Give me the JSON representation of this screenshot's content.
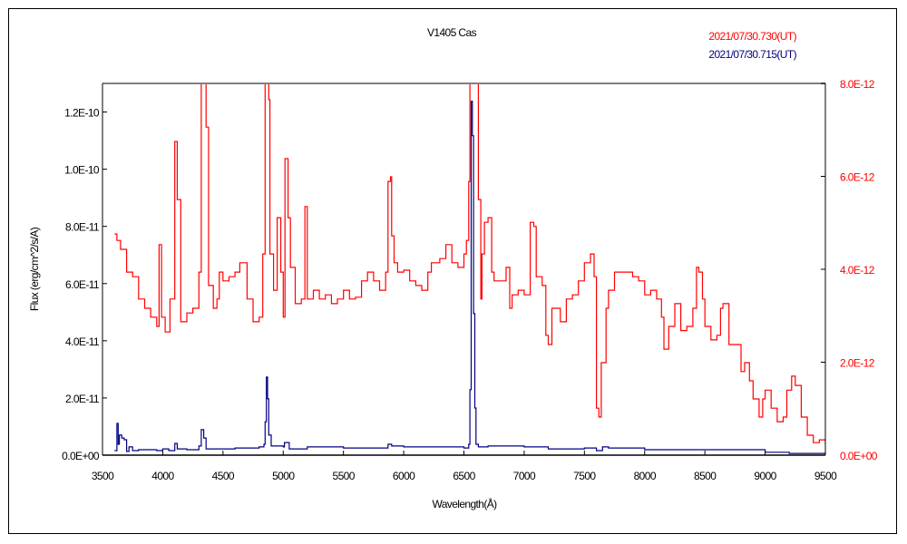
{
  "chart_data": {
    "type": "line",
    "title": "V1405 Cas",
    "xlabel": "Wavelength(Å)",
    "ylabel": "Flux (erg/cm^2/s/A)",
    "xlim": [
      3500,
      9500
    ],
    "ylim_left": [
      0,
      1.3e-10
    ],
    "ylim_right": [
      0,
      8e-12
    ],
    "x_ticks": [
      "3500",
      "4000",
      "4500",
      "5000",
      "5500",
      "6000",
      "6500",
      "7000",
      "7500",
      "8000",
      "8500",
      "9000",
      "9500"
    ],
    "left_ticks": [
      "0.0E+00",
      "2.0E-11",
      "4.0E-11",
      "6.0E-11",
      "8.0E-11",
      "1.0E-10",
      "1.2E-10"
    ],
    "right_ticks": [
      "0.0E+00",
      "2.0E-12",
      "4.0E-12",
      "6.0E-12",
      "8.0E-12"
    ],
    "grid": false,
    "legend_placement": "top-right",
    "series": [
      {
        "name": "2021/07/30.730(UT)",
        "color": "#ff0000",
        "axis": "right",
        "x": [
          3600,
          3620,
          3650,
          3700,
          3750,
          3800,
          3850,
          3900,
          3950,
          3970,
          3990,
          4020,
          4060,
          4100,
          4120,
          4150,
          4200,
          4250,
          4300,
          4320,
          4340,
          4360,
          4380,
          4420,
          4450,
          4470,
          4500,
          4550,
          4600,
          4640,
          4700,
          4750,
          4800,
          4830,
          4850,
          4870,
          4880,
          4890,
          4920,
          4950,
          4980,
          5000,
          5015,
          5040,
          5060,
          5100,
          5150,
          5180,
          5200,
          5250,
          5300,
          5350,
          5400,
          5450,
          5500,
          5550,
          5600,
          5650,
          5700,
          5750,
          5800,
          5850,
          5870,
          5890,
          5900,
          5920,
          5950,
          6000,
          6050,
          6100,
          6150,
          6200,
          6230,
          6280,
          6300,
          6350,
          6400,
          6450,
          6500,
          6520,
          6540,
          6550,
          6570,
          6590,
          6600,
          6620,
          6640,
          6650,
          6670,
          6700,
          6730,
          6750,
          6800,
          6850,
          6880,
          6900,
          6950,
          7000,
          7050,
          7080,
          7100,
          7150,
          7180,
          7200,
          7230,
          7300,
          7350,
          7400,
          7450,
          7500,
          7550,
          7580,
          7600,
          7620,
          7640,
          7680,
          7700,
          7750,
          7800,
          7850,
          7900,
          7950,
          8000,
          8050,
          8100,
          8140,
          8160,
          8200,
          8250,
          8300,
          8350,
          8400,
          8430,
          8450,
          8480,
          8500,
          8550,
          8600,
          8630,
          8650,
          8700,
          8750,
          8800,
          8830,
          8870,
          8900,
          8950,
          8980,
          9000,
          9050,
          9100,
          9150,
          9180,
          9220,
          9250,
          9300,
          9350,
          9400,
          9450,
          9500
        ],
        "y": [
          4.76e-12,
          4.62e-12,
          4.43e-12,
          3.94e-12,
          3.84e-12,
          3.36e-12,
          3.16e-12,
          2.97e-12,
          2.77e-12,
          4.53e-12,
          2.97e-12,
          2.65e-12,
          3.36e-12,
          6.75e-12,
          5.5e-12,
          2.87e-12,
          3.06e-12,
          3.16e-12,
          3.94e-12,
          8e-12,
          8e-12,
          7.06e-12,
          3.65e-12,
          3.16e-12,
          3.36e-12,
          3.94e-12,
          3.75e-12,
          3.84e-12,
          3.94e-12,
          4.14e-12,
          3.36e-12,
          2.87e-12,
          2.97e-12,
          4.33e-12,
          8e-12,
          8e-12,
          7.65e-12,
          4.33e-12,
          3.55e-12,
          5.11e-12,
          3.94e-12,
          2.97e-12,
          6.38e-12,
          5.11e-12,
          4.04e-12,
          3.26e-12,
          3.36e-12,
          5.35e-12,
          3.36e-12,
          3.55e-12,
          3.36e-12,
          3.45e-12,
          3.26e-12,
          3.36e-12,
          3.55e-12,
          3.36e-12,
          3.4e-12,
          3.75e-12,
          3.94e-12,
          3.75e-12,
          3.55e-12,
          3.94e-12,
          5.89e-12,
          5.99e-12,
          4.72e-12,
          4.14e-12,
          3.94e-12,
          3.98e-12,
          3.75e-12,
          3.65e-12,
          3.55e-12,
          3.94e-12,
          4.14e-12,
          4.14e-12,
          4.23e-12,
          4.53e-12,
          4.14e-12,
          4.04e-12,
          4.33e-12,
          4.62e-12,
          5.89e-12,
          8e-12,
          8e-12,
          8e-12,
          8e-12,
          5.5e-12,
          3.36e-12,
          4.33e-12,
          5.01e-12,
          5.11e-12,
          3.94e-12,
          3.75e-12,
          3.75e-12,
          4.04e-12,
          3.16e-12,
          3.45e-12,
          3.55e-12,
          3.45e-12,
          5.01e-12,
          4.92e-12,
          3.84e-12,
          3.65e-12,
          2.58e-12,
          2.38e-12,
          3.16e-12,
          2.87e-12,
          3.36e-12,
          3.45e-12,
          3.75e-12,
          4.14e-12,
          4.33e-12,
          3.84e-12,
          1.01e-12,
          8.2e-13,
          1.99e-12,
          3.16e-12,
          3.55e-12,
          3.94e-12,
          3.94e-12,
          3.94e-12,
          3.84e-12,
          3.75e-12,
          3.45e-12,
          3.55e-12,
          3.36e-12,
          2.97e-12,
          2.28e-12,
          2.77e-12,
          3.26e-12,
          2.68e-12,
          2.77e-12,
          3.16e-12,
          4.04e-12,
          3.94e-12,
          3.36e-12,
          2.77e-12,
          2.48e-12,
          2.58e-12,
          3.16e-12,
          3.26e-12,
          2.38e-12,
          2.38e-12,
          1.8e-12,
          1.99e-12,
          1.6e-12,
          1.21e-12,
          8.2e-13,
          1.21e-12,
          1.4e-12,
          1.01e-12,
          7.2e-13,
          8.2e-13,
          1.4e-12,
          1.7e-12,
          1.5e-12,
          8.2e-13,
          4.3e-13,
          2.7e-13,
          3.3e-13,
          2.3e-13
        ]
      },
      {
        "name": "2021/07/30.715(UT)",
        "color": "#000080",
        "axis": "left",
        "x": [
          3600,
          3620,
          3630,
          3640,
          3660,
          3680,
          3700,
          3720,
          3750,
          3800,
          3900,
          3950,
          4000,
          4050,
          4100,
          4120,
          4200,
          4300,
          4320,
          4340,
          4360,
          4500,
          4600,
          4700,
          4800,
          4840,
          4850,
          4860,
          4870,
          4880,
          4900,
          5000,
          5010,
          5050,
          5200,
          5500,
          5870,
          5900,
          6000,
          6500,
          6540,
          6550,
          6560,
          6570,
          6580,
          6590,
          6600,
          6620,
          6700,
          7000,
          7200,
          7500,
          7600,
          7650,
          7700,
          8000,
          8500,
          8800,
          9000,
          9200,
          9400,
          9500
        ],
        "y": [
          1.6e-12,
          1.11e-11,
          3.8e-12,
          7e-12,
          6e-12,
          5.4e-12,
          1.3e-12,
          2.9e-12,
          1.6e-12,
          1.9e-12,
          1.9e-12,
          1.6e-12,
          2.2e-12,
          1.6e-12,
          4.1e-12,
          2.2e-12,
          1.9e-12,
          3.2e-12,
          8.9e-12,
          6e-12,
          2.2e-12,
          2.2e-12,
          2.5e-12,
          2.5e-12,
          2.9e-12,
          3.8e-12,
          1.17e-11,
          2.73e-11,
          1.97e-11,
          7e-12,
          3.2e-12,
          2.9e-12,
          4.4e-12,
          2.2e-12,
          2.9e-12,
          2.5e-12,
          3.8e-12,
          3.2e-12,
          2.9e-12,
          2.5e-12,
          3.8e-12,
          2.29e-11,
          1.238e-10,
          1.117e-10,
          4.95e-11,
          1.65e-11,
          3.8e-12,
          2.9e-12,
          3.2e-12,
          2.9e-12,
          2.2e-12,
          2.5e-12,
          1.6e-12,
          2.9e-12,
          2.5e-12,
          1.9e-12,
          1.9e-12,
          1.9e-12,
          1e-12,
          6e-13,
          6e-13,
          1e-12
        ]
      }
    ]
  }
}
